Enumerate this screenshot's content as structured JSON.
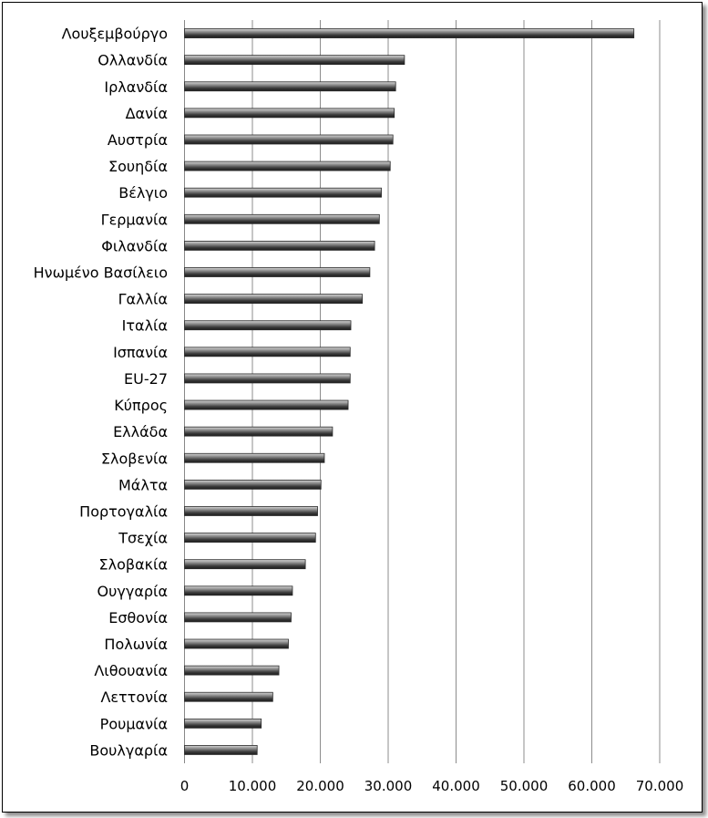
{
  "chart_data": {
    "type": "bar",
    "orientation": "horizontal",
    "title": "",
    "xlabel": "",
    "ylabel": "",
    "xlim": [
      0,
      70000
    ],
    "x_ticks": [
      0,
      10000,
      20000,
      30000,
      40000,
      50000,
      60000,
      70000
    ],
    "x_tick_labels": [
      "0",
      "10.000",
      "20.000",
      "30.000",
      "40.000",
      "50.000",
      "60.000",
      "70.000"
    ],
    "grid": "vertical",
    "legend": "none",
    "categories": [
      "Λουξεμβούργο",
      "Ολλανδία",
      "Ιρλανδία",
      "Δανία",
      "Αυστρία",
      "Σουηδία",
      "Βέλγιο",
      "Γερμανία",
      "Φιλανδία",
      "Ηνωμένο Βασίλειο",
      "Γαλλία",
      "Ιταλία",
      "Ισπανία",
      "EU-27",
      "Κύπρος",
      "Ελλάδα",
      "Σλοβενία",
      "Μάλτα",
      "Πορτογαλία",
      "Τσεχία",
      "Σλοβακία",
      "Ουγγαρία",
      "Εσθονία",
      "Πολωνία",
      "Λιθουανία",
      "Λεττονία",
      "Ρουμανία",
      "Βουλγαρία"
    ],
    "values": [
      66200,
      32400,
      31100,
      30900,
      30700,
      30300,
      29000,
      28700,
      28000,
      27300,
      26200,
      24500,
      24400,
      24400,
      24100,
      21800,
      20600,
      20100,
      19600,
      19300,
      17800,
      15900,
      15700,
      15300,
      13900,
      13000,
      11300,
      10700
    ],
    "bar_color": "#6e6e6e"
  }
}
